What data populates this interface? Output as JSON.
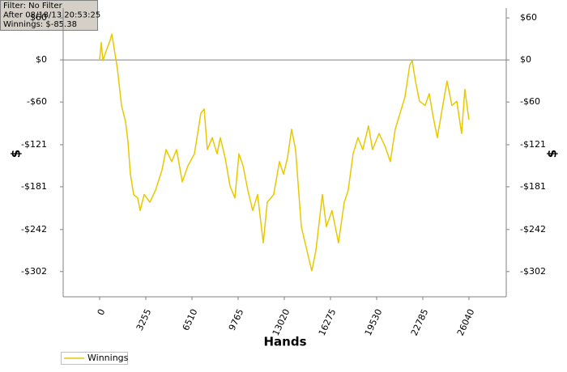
{
  "chart_data": {
    "type": "line",
    "annotations": [
      "Filter: No Filter",
      "After 08/18/13 20:53:25",
      "Winnings: $-85.38"
    ],
    "xlabel": "Hands",
    "ylabel": "$",
    "y2label": "$",
    "x": [
      0,
      114,
      228,
      514,
      742,
      857,
      1028,
      1256,
      1542,
      1827,
      1999,
      2170,
      2398,
      2684,
      2855,
      3141,
      3540,
      3940,
      4397,
      4682,
      5082,
      5425,
      5824,
      6224,
      6681,
      7138,
      7366,
      7595,
      7937,
      8280,
      8508,
      8851,
      9193,
      9536,
      9821,
      10107,
      10449,
      10792,
      11134,
      11534,
      11820,
      12276,
      12676,
      12962,
      13247,
      13533,
      13818,
      14218,
      14560,
      14960,
      15246,
      15703,
      15988,
      16388,
      16845,
      17245,
      17530,
      17873,
      18215,
      18558,
      18957,
      19243,
      19700,
      20099,
      20499,
      20842,
      21184,
      21527,
      21869,
      22040,
      22269,
      22554,
      22954,
      23240,
      23525,
      23811,
      24154,
      24496,
      24839,
      25181,
      25524,
      25752,
      26040
    ],
    "series": [
      {
        "name": "Winnings",
        "color": "#e8c800",
        "values": [
          0,
          25,
          -1,
          16,
          28,
          37,
          16,
          -13,
          -65,
          -88,
          -117,
          -163,
          -192,
          -197,
          -215,
          -192,
          -203,
          -186,
          -157,
          -128,
          -145,
          -128,
          -174,
          -151,
          -134,
          -76,
          -70,
          -128,
          -111,
          -134,
          -111,
          -140,
          -180,
          -197,
          -134,
          -151,
          -186,
          -215,
          -192,
          -261,
          -203,
          -192,
          -145,
          -163,
          -140,
          -99,
          -128,
          -238,
          -267,
          -301,
          -272,
          -192,
          -238,
          -215,
          -261,
          -203,
          -186,
          -134,
          -111,
          -128,
          -94,
          -128,
          -105,
          -122,
          -145,
          -99,
          -76,
          -53,
          -7,
          -1,
          -30,
          -59,
          -65,
          -48,
          -82,
          -111,
          -70,
          -30,
          -65,
          -59,
          -105,
          -42,
          -85.38
        ]
      }
    ],
    "xlim": [
      -2570,
      28670
    ],
    "xticks": [
      0,
      3255,
      6510,
      9765,
      13020,
      16275,
      19530,
      22785,
      26040
    ],
    "ylim": [
      -338,
      74
    ],
    "yticks": [
      {
        "value": 60,
        "label": "$60"
      },
      {
        "value": 0,
        "label": "$0"
      },
      {
        "value": -60,
        "label": "-$60"
      },
      {
        "value": -121,
        "label": "-$121"
      },
      {
        "value": -181,
        "label": "-$181"
      },
      {
        "value": -242,
        "label": "-$242"
      },
      {
        "value": -302,
        "label": "-$302"
      }
    ],
    "zero_line": true,
    "legend": "bottom-left"
  }
}
